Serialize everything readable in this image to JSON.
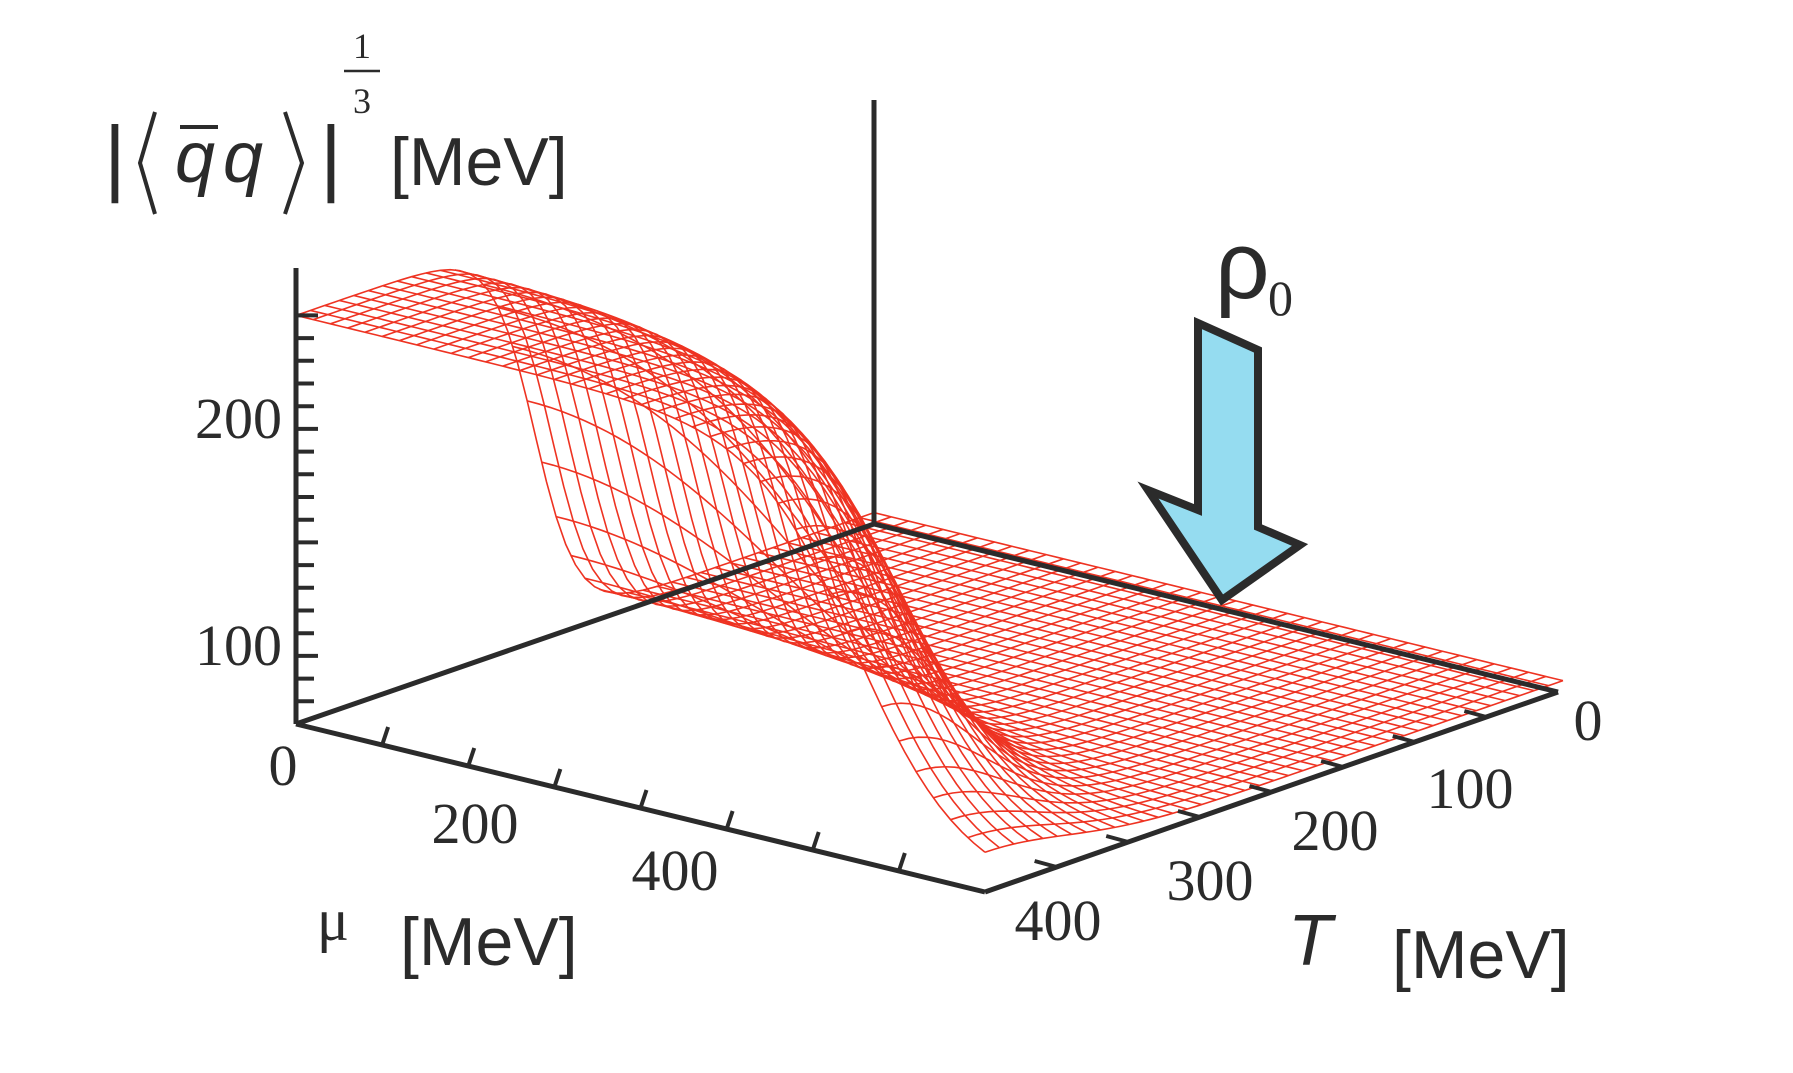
{
  "chart_data": {
    "type": "surface3d",
    "title": "",
    "zlabel": {
      "bar_left": "|",
      "q_bar": "q",
      "q": "q",
      "bar_right": "|",
      "exp_num": "1",
      "exp_den": "3",
      "unit": "[MeV]"
    },
    "xlabel": {
      "symbol": "μ",
      "unit": "[MeV]"
    },
    "ylabel": {
      "symbol": "T",
      "unit": "[MeV]"
    },
    "x_ticks": [
      "0",
      "200",
      "400"
    ],
    "y_ticks": [
      "0",
      "100",
      "200",
      "300",
      "400"
    ],
    "z_ticks": [
      "100",
      "200"
    ],
    "xlim": [
      0,
      640
    ],
    "ylim": [
      0,
      400
    ],
    "zlim": [
      70,
      260
    ],
    "surface": {
      "mu": [
        0,
        320,
        640
      ],
      "T": [
        0,
        100,
        200,
        300,
        400
      ],
      "condensate_approx": [
        [
          248,
          240,
          110,
          78,
          75
        ],
        [
          200,
          190,
          100,
          77,
          74
        ],
        [
          95,
          92,
          82,
          75,
          73
        ]
      ]
    },
    "annotation": {
      "symbol": "ρ",
      "subscript": "0"
    },
    "colors": {
      "mesh": "#ee3322",
      "axes": "#2b2b2b",
      "arrow_fill": "#95dcf0",
      "arrow_stroke": "#2b2b2b"
    }
  }
}
